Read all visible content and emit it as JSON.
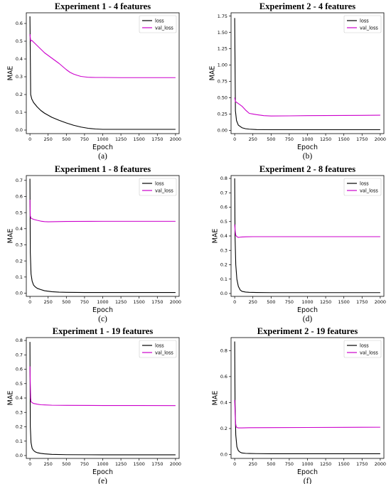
{
  "chart_data": [
    {
      "type": "line",
      "title": "Experiment 1 - 4 features",
      "xlabel": "Epoch",
      "ylabel": "MAE",
      "caption": "(a)",
      "xlim": [
        -50,
        2050
      ],
      "ylim": [
        -0.02,
        0.66
      ],
      "xticks": [
        "0",
        "250",
        "500",
        "750",
        "1000",
        "1250",
        "1500",
        "1750",
        "2000"
      ],
      "yticks": [
        "0.0",
        "0.1",
        "0.2",
        "0.3",
        "0.4",
        "0.5",
        "0.6"
      ],
      "legend": "top-right",
      "series": [
        {
          "name": "loss",
          "color": "#000000",
          "x": [
            0,
            10,
            25,
            50,
            100,
            150,
            200,
            300,
            400,
            500,
            600,
            700,
            800,
            900,
            1000,
            1250,
            1500,
            1750,
            2000
          ],
          "y": [
            0.64,
            0.2,
            0.175,
            0.155,
            0.13,
            0.11,
            0.095,
            0.072,
            0.055,
            0.04,
            0.027,
            0.017,
            0.01,
            0.006,
            0.004,
            0.004,
            0.004,
            0.004,
            0.004
          ]
        },
        {
          "name": "val_loss",
          "color": "#cc00cc",
          "x": [
            0,
            10,
            25,
            50,
            100,
            150,
            200,
            300,
            400,
            500,
            550,
            600,
            650,
            700,
            800,
            900,
            1000,
            1250,
            1500,
            1750,
            2000
          ],
          "y": [
            0.54,
            0.5,
            0.505,
            0.495,
            0.475,
            0.455,
            0.435,
            0.405,
            0.375,
            0.34,
            0.325,
            0.315,
            0.308,
            0.302,
            0.297,
            0.296,
            0.296,
            0.295,
            0.295,
            0.295,
            0.295
          ]
        }
      ]
    },
    {
      "type": "line",
      "title": "Experiment 2 - 4 features",
      "xlabel": "Epoch",
      "ylabel": "MAE",
      "caption": "(b)",
      "xlim": [
        -50,
        2050
      ],
      "ylim": [
        -0.05,
        1.8
      ],
      "xticks": [
        "0",
        "250",
        "500",
        "750",
        "1000",
        "1250",
        "1500",
        "1750",
        "2000"
      ],
      "yticks": [
        "0.00",
        "0.25",
        "0.50",
        "0.75",
        "1.00",
        "1.25",
        "1.50",
        "1.75"
      ],
      "legend": "top-right",
      "series": [
        {
          "name": "loss",
          "color": "#000000",
          "x": [
            0,
            10,
            25,
            50,
            100,
            150,
            200,
            300,
            500,
            1000,
            1500,
            2000
          ],
          "y": [
            1.72,
            0.3,
            0.15,
            0.08,
            0.04,
            0.025,
            0.018,
            0.012,
            0.01,
            0.01,
            0.01,
            0.01
          ]
        },
        {
          "name": "val_loss",
          "color": "#cc00cc",
          "x": [
            0,
            10,
            25,
            50,
            100,
            150,
            200,
            250,
            300,
            400,
            500,
            750,
            1000,
            1500,
            2000
          ],
          "y": [
            0.5,
            0.44,
            0.43,
            0.41,
            0.37,
            0.31,
            0.26,
            0.25,
            0.24,
            0.225,
            0.22,
            0.222,
            0.225,
            0.228,
            0.232
          ]
        }
      ]
    },
    {
      "type": "line",
      "title": "Experiment 1 - 8 features",
      "xlabel": "Epoch",
      "ylabel": "MAE",
      "caption": "(c)",
      "xlim": [
        -50,
        2050
      ],
      "ylim": [
        -0.02,
        0.73
      ],
      "xticks": [
        "0",
        "250",
        "500",
        "750",
        "1000",
        "1250",
        "1500",
        "1750",
        "2000"
      ],
      "yticks": [
        "0.0",
        "0.1",
        "0.2",
        "0.3",
        "0.4",
        "0.5",
        "0.6",
        "0.7"
      ],
      "legend": "top-right",
      "series": [
        {
          "name": "loss",
          "color": "#000000",
          "x": [
            0,
            5,
            15,
            30,
            50,
            75,
            100,
            150,
            200,
            300,
            400,
            500,
            750,
            1000,
            1500,
            2000
          ],
          "y": [
            0.71,
            0.25,
            0.12,
            0.075,
            0.05,
            0.038,
            0.03,
            0.022,
            0.015,
            0.009,
            0.006,
            0.005,
            0.004,
            0.004,
            0.004,
            0.004
          ]
        },
        {
          "name": "val_loss",
          "color": "#cc00cc",
          "x": [
            0,
            5,
            15,
            30,
            50,
            100,
            150,
            200,
            250,
            500,
            1000,
            1500,
            2000
          ],
          "y": [
            0.58,
            0.48,
            0.465,
            0.462,
            0.458,
            0.452,
            0.447,
            0.444,
            0.443,
            0.445,
            0.446,
            0.446,
            0.446
          ]
        }
      ]
    },
    {
      "type": "line",
      "title": "Experiment 2 - 8 features",
      "xlabel": "Epoch",
      "ylabel": "MAE",
      "caption": "(d)",
      "xlim": [
        -50,
        2050
      ],
      "ylim": [
        -0.02,
        0.82
      ],
      "xticks": [
        "0",
        "250",
        "500",
        "750",
        "1000",
        "1250",
        "1500",
        "1750",
        "2000"
      ],
      "yticks": [
        "0.0",
        "0.1",
        "0.2",
        "0.3",
        "0.4",
        "0.5",
        "0.6",
        "0.7",
        "0.8"
      ],
      "legend": "top-right",
      "series": [
        {
          "name": "loss",
          "color": "#000000",
          "x": [
            0,
            5,
            15,
            30,
            50,
            75,
            100,
            150,
            200,
            300,
            500,
            1000,
            1500,
            2000
          ],
          "y": [
            0.8,
            0.4,
            0.2,
            0.1,
            0.05,
            0.025,
            0.015,
            0.01,
            0.008,
            0.007,
            0.006,
            0.006,
            0.006,
            0.006
          ]
        },
        {
          "name": "val_loss",
          "color": "#cc00cc",
          "x": [
            0,
            5,
            15,
            30,
            50,
            75,
            100,
            150,
            250,
            500,
            1000,
            1500,
            2000
          ],
          "y": [
            0.48,
            0.44,
            0.405,
            0.395,
            0.39,
            0.392,
            0.393,
            0.394,
            0.395,
            0.395,
            0.395,
            0.395,
            0.395
          ]
        }
      ]
    },
    {
      "type": "line",
      "title": "Experiment 1 - 19 features",
      "xlabel": "Epoch",
      "ylabel": "MAE",
      "caption": "(e)",
      "xlim": [
        -50,
        2050
      ],
      "ylim": [
        -0.02,
        0.82
      ],
      "xticks": [
        "0",
        "250",
        "500",
        "750",
        "1000",
        "1250",
        "1500",
        "1750",
        "2000"
      ],
      "yticks": [
        "0.0",
        "0.1",
        "0.2",
        "0.3",
        "0.4",
        "0.5",
        "0.6",
        "0.7",
        "0.8"
      ],
      "legend": "top-right",
      "series": [
        {
          "name": "loss",
          "color": "#000000",
          "x": [
            0,
            5,
            15,
            30,
            50,
            75,
            100,
            150,
            200,
            300,
            500,
            1000,
            1500,
            2000
          ],
          "y": [
            0.79,
            0.2,
            0.09,
            0.05,
            0.035,
            0.025,
            0.02,
            0.015,
            0.012,
            0.008,
            0.006,
            0.005,
            0.005,
            0.005
          ]
        },
        {
          "name": "val_loss",
          "color": "#cc00cc",
          "x": [
            0,
            5,
            10,
            15,
            30,
            50,
            100,
            150,
            200,
            300,
            500,
            1000,
            1500,
            2000
          ],
          "y": [
            0.62,
            0.5,
            0.4,
            0.375,
            0.368,
            0.362,
            0.357,
            0.353,
            0.352,
            0.35,
            0.349,
            0.348,
            0.348,
            0.347
          ]
        }
      ]
    },
    {
      "type": "line",
      "title": "Experiment 2 - 19 features",
      "xlabel": "Epoch",
      "ylabel": "MAE",
      "caption": "(f)",
      "xlim": [
        -50,
        2050
      ],
      "ylim": [
        -0.03,
        0.9
      ],
      "xticks": [
        "0",
        "250",
        "500",
        "750",
        "1000",
        "1250",
        "1500",
        "1750",
        "2000"
      ],
      "yticks": [
        "0.0",
        "0.2",
        "0.4",
        "0.6",
        "0.8"
      ],
      "legend": "top-right",
      "series": [
        {
          "name": "loss",
          "color": "#000000",
          "x": [
            0,
            5,
            15,
            30,
            50,
            75,
            100,
            150,
            200,
            300,
            500,
            1000,
            1500,
            2000
          ],
          "y": [
            0.87,
            0.4,
            0.15,
            0.06,
            0.03,
            0.018,
            0.012,
            0.009,
            0.008,
            0.007,
            0.006,
            0.006,
            0.006,
            0.006
          ]
        },
        {
          "name": "val_loss",
          "color": "#cc00cc",
          "x": [
            0,
            5,
            10,
            20,
            30,
            50,
            100,
            200,
            500,
            1000,
            1500,
            2000
          ],
          "y": [
            0.42,
            0.33,
            0.25,
            0.215,
            0.208,
            0.205,
            0.205,
            0.206,
            0.207,
            0.208,
            0.209,
            0.21
          ]
        }
      ]
    }
  ]
}
